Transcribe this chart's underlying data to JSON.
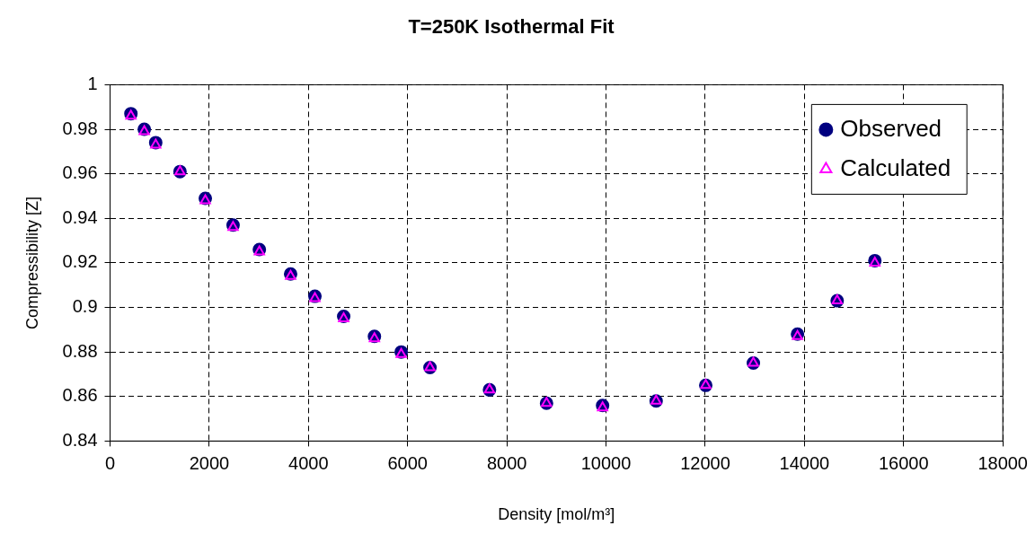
{
  "chart_data": {
    "type": "scatter",
    "title": "T=250K Isothermal Fit",
    "xlabel": "Density [mol/m³]",
    "ylabel": "Compressibility [Z]",
    "xlim": [
      0,
      18000
    ],
    "xticks": [
      0,
      2000,
      4000,
      6000,
      8000,
      10000,
      12000,
      14000,
      16000,
      18000
    ],
    "ylim": [
      0.84,
      1
    ],
    "yticks": [
      0.84,
      0.86,
      0.88,
      0.9,
      0.92,
      0.94,
      0.96,
      0.98,
      1
    ],
    "grid": true,
    "legend": "top right",
    "x": [
      420,
      690,
      920,
      1410,
      1920,
      2480,
      3010,
      3640,
      4130,
      4710,
      5330,
      5870,
      6450,
      7650,
      8800,
      9930,
      11010,
      12010,
      12970,
      13860,
      14660,
      15420
    ],
    "series": [
      {
        "name": "Observed",
        "color": "#000080",
        "marker": "circle",
        "values": [
          0.987,
          0.98,
          0.974,
          0.961,
          0.949,
          0.937,
          0.926,
          0.915,
          0.905,
          0.896,
          0.887,
          0.88,
          0.873,
          0.863,
          0.857,
          0.856,
          0.858,
          0.865,
          0.875,
          0.888,
          0.903,
          0.921
        ]
      },
      {
        "name": "Calculated",
        "color": "#ff00ff",
        "marker": "triangle",
        "values": [
          0.986,
          0.979,
          0.973,
          0.961,
          0.948,
          0.936,
          0.925,
          0.914,
          0.904,
          0.895,
          0.886,
          0.879,
          0.873,
          0.863,
          0.857,
          0.855,
          0.858,
          0.865,
          0.875,
          0.887,
          0.903,
          0.92
        ]
      }
    ]
  }
}
